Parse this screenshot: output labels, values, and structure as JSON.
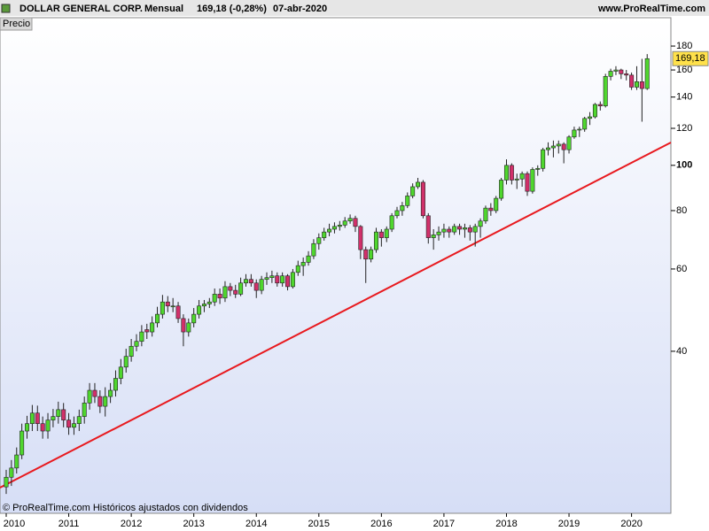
{
  "header": {
    "company": "DOLLAR GENERAL CORP.",
    "period": "Mensual",
    "quote": "169,18 (-0,28%)",
    "date": "07-abr-2020",
    "site": "www.ProRealTime.com"
  },
  "panel_label": "Precio",
  "footer": "© ProRealTime.com Históricos ajustados con dividendos",
  "chart_data": {
    "type": "candlestick",
    "categories": [
      "2010",
      null,
      null,
      null,
      null,
      null,
      null,
      null,
      null,
      null,
      null,
      null,
      "2011",
      null,
      null,
      null,
      null,
      null,
      null,
      null,
      null,
      null,
      null,
      null,
      "2012",
      null,
      null,
      null,
      null,
      null,
      null,
      null,
      null,
      null,
      null,
      null,
      "2013",
      null,
      null,
      null,
      null,
      null,
      null,
      null,
      null,
      null,
      null,
      null,
      "2014",
      null,
      null,
      null,
      null,
      null,
      null,
      null,
      null,
      null,
      null,
      null,
      "2015",
      null,
      null,
      null,
      null,
      null,
      null,
      null,
      null,
      null,
      null,
      null,
      "2016",
      null,
      null,
      null,
      null,
      null,
      null,
      null,
      null,
      null,
      null,
      null,
      "2017",
      null,
      null,
      null,
      null,
      null,
      null,
      null,
      null,
      null,
      null,
      null,
      "2018",
      null,
      null,
      null,
      null,
      null,
      null,
      null,
      null,
      null,
      null,
      null,
      "2019",
      null,
      null,
      null,
      null,
      null,
      null,
      null,
      null,
      null,
      null,
      null,
      "2020",
      null,
      null,
      null
    ],
    "open": [
      20.5,
      21.5,
      22.5,
      24,
      27,
      28,
      29.5,
      28,
      27,
      28.5,
      29,
      30,
      28.5,
      27.5,
      28,
      29,
      31,
      33,
      32,
      30.5,
      32,
      33,
      35,
      37,
      39,
      41,
      42,
      44.5,
      44,
      46,
      48,
      51,
      50,
      50,
      47,
      44,
      46,
      48,
      50,
      50.5,
      51,
      53,
      52,
      55,
      54,
      53,
      56,
      57,
      56,
      54,
      57,
      57.5,
      58,
      56,
      58,
      55,
      59,
      61,
      62,
      64,
      68,
      70,
      72,
      73,
      74,
      74.5,
      76,
      77,
      74,
      66,
      63,
      66,
      72,
      70,
      73,
      78,
      80,
      82,
      86,
      90,
      92,
      78,
      70,
      71,
      72,
      73,
      72,
      74,
      73,
      73.5,
      72,
      74,
      76,
      81,
      80,
      85,
      93,
      100,
      93,
      93.5,
      96,
      88,
      98,
      98.5,
      108,
      109,
      110,
      111,
      108,
      115,
      119,
      119.5,
      126,
      127,
      135,
      134,
      155,
      159,
      160,
      157,
      156,
      147,
      151,
      146
    ],
    "high": [
      22.3,
      23.4,
      24.9,
      28,
      29.1,
      30.7,
      30.6,
      29,
      29.5,
      30.1,
      31.2,
      31,
      29.5,
      29,
      30,
      32,
      34.2,
      34.2,
      33,
      33.5,
      34.2,
      36.4,
      38.5,
      40.5,
      42.5,
      43.5,
      45.5,
      45.8,
      47.5,
      49.8,
      52.8,
      52.5,
      52,
      51,
      48,
      47,
      49.5,
      51.5,
      51.5,
      52,
      54.5,
      54.5,
      56.5,
      56,
      55.5,
      57.5,
      58.5,
      58.5,
      57,
      58,
      59,
      59.5,
      59,
      59,
      58.5,
      60,
      62.5,
      63.5,
      65.5,
      69.5,
      71.5,
      73.5,
      75,
      75.5,
      76,
      77.5,
      78.5,
      78,
      74.5,
      67,
      67,
      73.5,
      73,
      74,
      79,
      81.5,
      83.5,
      87.5,
      91.5,
      94,
      93,
      79,
      73,
      74,
      75,
      74,
      75,
      75,
      75,
      74.5,
      75,
      77,
      82,
      83,
      86,
      94,
      103,
      101,
      96,
      97,
      97,
      99,
      100,
      109,
      112,
      113,
      113,
      112,
      116,
      121,
      121,
      127,
      130,
      136,
      137,
      157,
      161,
      163,
      161,
      160,
      158,
      163,
      169,
      173
    ],
    "low": [
      19.8,
      20.6,
      21.9,
      23.5,
      26,
      27,
      27,
      26,
      26,
      27.5,
      28,
      27.5,
      26.5,
      26.5,
      27,
      28,
      30,
      31,
      29.5,
      29,
      31,
      32,
      34,
      36,
      38,
      40,
      41,
      42.5,
      43,
      45,
      47,
      48.5,
      48.5,
      46,
      41,
      43,
      45,
      47,
      48.5,
      49.5,
      50,
      50.5,
      51,
      52.5,
      52,
      52.5,
      55,
      55,
      52,
      53,
      55.5,
      56,
      55,
      55,
      54,
      54.5,
      58,
      58,
      61,
      63,
      66,
      69,
      70.5,
      71.5,
      72.5,
      73.5,
      75,
      72,
      63,
      56,
      62,
      65,
      67,
      68.5,
      72,
      77,
      78,
      81,
      85,
      89,
      77,
      68,
      66,
      69,
      70,
      70,
      71,
      71,
      70,
      69,
      67,
      70,
      75,
      78,
      79,
      84,
      91,
      91,
      89,
      90,
      86,
      87,
      95,
      97,
      105,
      104,
      106,
      101,
      106,
      114,
      115,
      118,
      122,
      126,
      131,
      133,
      152,
      156,
      153,
      152,
      145,
      145,
      124,
      145
    ],
    "close": [
      21.5,
      22.5,
      24,
      27,
      28,
      29.5,
      28,
      27,
      28.5,
      29,
      30,
      28.5,
      27.5,
      28,
      29,
      31,
      33,
      32,
      30.5,
      32,
      33,
      35,
      37,
      39,
      41,
      42,
      44,
      44,
      46,
      48,
      51,
      50,
      50,
      47,
      44,
      46,
      48,
      50,
      50.5,
      51,
      53,
      52,
      55,
      54,
      53,
      56,
      57,
      56,
      54,
      57,
      57.5,
      58,
      56,
      58,
      55,
      59,
      61,
      62,
      64,
      68,
      70,
      72,
      73,
      74,
      74.5,
      76,
      77,
      74,
      66,
      63,
      66,
      72,
      70,
      73,
      78,
      80,
      82,
      86,
      90,
      92,
      78,
      70,
      71,
      72,
      73,
      72,
      74,
      73,
      73.5,
      72,
      74,
      76,
      81,
      80,
      85,
      93,
      100,
      93,
      93.5,
      96,
      88,
      98,
      98.5,
      108,
      109,
      110,
      111,
      108,
      115,
      119,
      119.5,
      126,
      127,
      135,
      134,
      155,
      159,
      160,
      157,
      156,
      147,
      151,
      146,
      169.18
    ],
    "up_color": "#4fd62e",
    "down_color": "#d1306a",
    "last_label": "169,18",
    "ylim": [
      18,
      207
    ],
    "log_scale": true,
    "yticks": [
      40,
      60,
      80,
      100,
      120,
      140,
      160,
      180
    ],
    "bold_tick": 100
  }
}
